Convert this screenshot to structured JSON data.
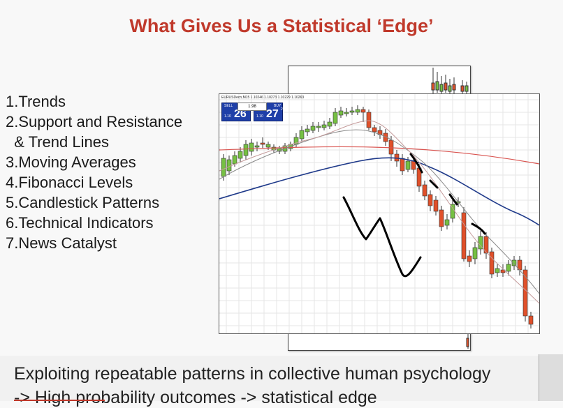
{
  "slide": {
    "title": "What Gives Us a Statistical ‘Edge’",
    "items": [
      "1.Trends",
      "2.Support and Resistance",
      "  & Trend Lines",
      "3.Moving Averages",
      "4.Fibonacci Levels",
      "5.Candlestick Patterns",
      "6.Technical Indicators",
      "7.News Catalyst"
    ],
    "footer": {
      "line1": "Exploiting repeatable patterns in collective human psychology",
      "line2": "-> High probability outcomes -> statistical edge"
    }
  },
  "chart": {
    "symbol_header": "EURUSDecn,M15  1.10246 1.10273 1.10229 1.10263",
    "trade_panel": {
      "sell_label": "SELL",
      "buy_label": "BUY",
      "lot_value": "1.98",
      "sell_prefix": "1.10",
      "sell_big": "26",
      "sell_sup": "9",
      "buy_prefix": "1.10",
      "buy_big": "27",
      "buy_sup": "2"
    },
    "colors": {
      "bull": "#76c043",
      "bear": "#e0502a",
      "ma_red": "#d9534f",
      "ma_blue": "#1f3a8a",
      "ma_gray": "#888888",
      "grid": "#e6e6e6",
      "drawing": "#000000"
    }
  }
}
